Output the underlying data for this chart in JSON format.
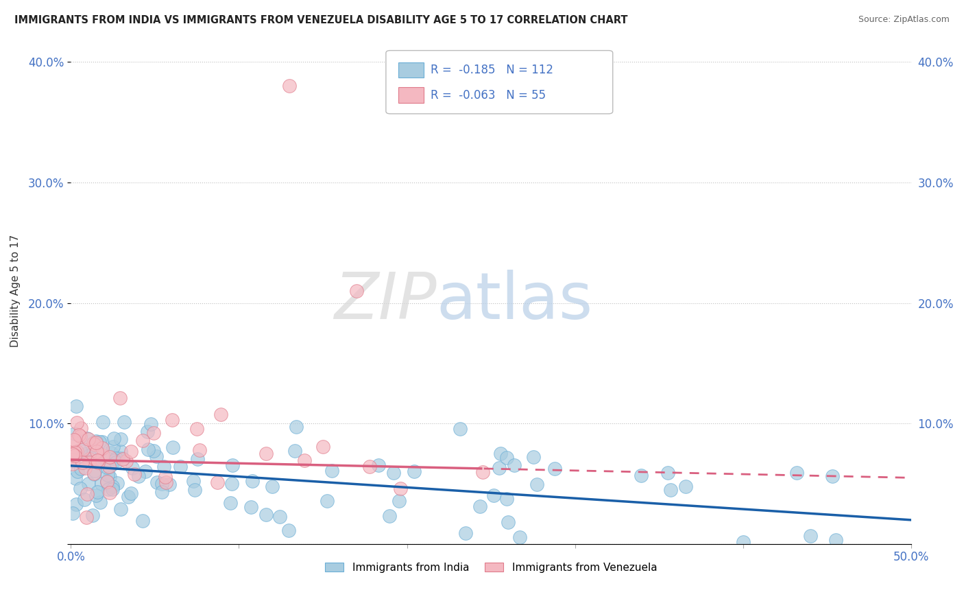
{
  "title": "IMMIGRANTS FROM INDIA VS IMMIGRANTS FROM VENEZUELA DISABILITY AGE 5 TO 17 CORRELATION CHART",
  "source": "Source: ZipAtlas.com",
  "ylabel": "Disability Age 5 to 17",
  "xlim": [
    0.0,
    0.5
  ],
  "ylim": [
    0.0,
    0.42
  ],
  "india_color": "#a8cce0",
  "india_edge": "#6aaed6",
  "venezuela_color": "#f4b8c1",
  "venezuela_edge": "#e07a8a",
  "india_R": -0.185,
  "india_N": 112,
  "venezuela_R": -0.063,
  "venezuela_N": 55,
  "india_line_color": "#1a5fa8",
  "venezuela_line_color": "#d95f7f",
  "watermark_zip": "ZIP",
  "watermark_atlas": "atlas",
  "legend_label_india": "Immigrants from India",
  "legend_label_venezuela": "Immigrants from Venezuela"
}
